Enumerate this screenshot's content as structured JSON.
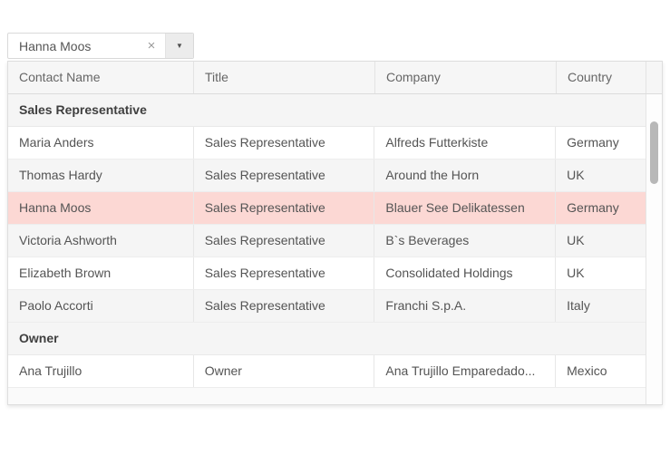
{
  "combobox": {
    "value": "Hanna Moos"
  },
  "icons": {
    "clear": "×",
    "dropdown_arrow": "▼"
  },
  "colors": {
    "selected_row": "#fcd8d4",
    "alt_row": "#f5f5f5",
    "header_bg": "#f6f6f6",
    "grid_border": "#dedede",
    "scrollbar_thumb": "#b8b8b8"
  },
  "grid": {
    "columns": [
      "Contact Name",
      "Title",
      "Company",
      "Country"
    ],
    "groups": [
      {
        "label": "Sales Representative",
        "rows": [
          {
            "highlighted": false,
            "cells": [
              "Maria Anders",
              "Sales Representative",
              "Alfreds Futterkiste",
              "Germany"
            ]
          },
          {
            "highlighted": false,
            "cells": [
              "Thomas Hardy",
              "Sales Representative",
              "Around the Horn",
              "UK"
            ]
          },
          {
            "highlighted": true,
            "cells": [
              "Hanna Moos",
              "Sales Representative",
              "Blauer See Delikatessen",
              "Germany"
            ]
          },
          {
            "highlighted": false,
            "cells": [
              "Victoria Ashworth",
              "Sales Representative",
              "B`s Beverages",
              "UK"
            ]
          },
          {
            "highlighted": false,
            "cells": [
              "Elizabeth Brown",
              "Sales Representative",
              "Consolidated Holdings",
              "UK"
            ]
          },
          {
            "highlighted": false,
            "cells": [
              "Paolo Accorti",
              "Sales Representative",
              "Franchi S.p.A.",
              "Italy"
            ]
          }
        ]
      },
      {
        "label": "Owner",
        "rows": [
          {
            "highlighted": false,
            "cells": [
              "Ana Trujillo",
              "Owner",
              "Ana Trujillo Emparedado...",
              "Mexico"
            ]
          }
        ]
      }
    ]
  }
}
